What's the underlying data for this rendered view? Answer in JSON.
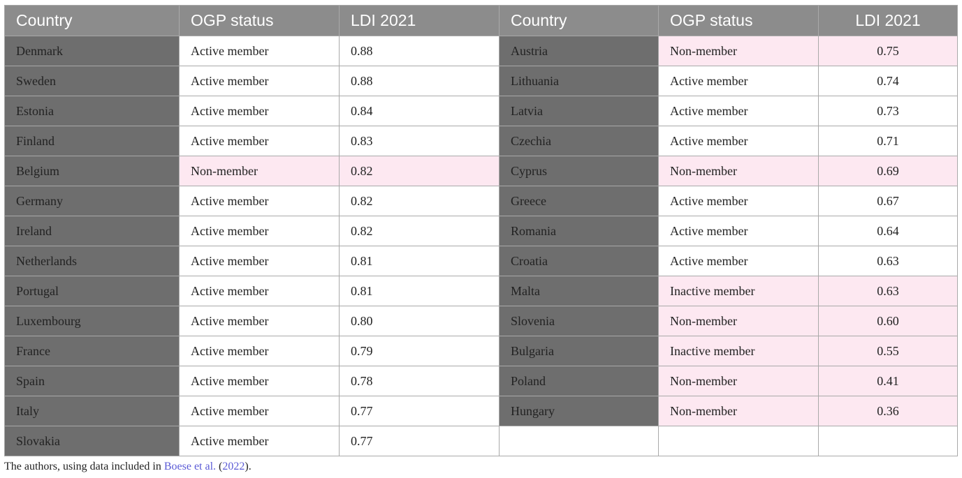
{
  "headers": {
    "country": "Country",
    "ogp_status": "OGP status",
    "ldi": "LDI 2021"
  },
  "rows": [
    {
      "left": {
        "country": "Denmark",
        "status": "Active member",
        "ldi": "0.88",
        "highlight": false
      },
      "right": {
        "country": "Austria",
        "status": "Non-member",
        "ldi": "0.75",
        "highlight": true
      }
    },
    {
      "left": {
        "country": "Sweden",
        "status": "Active member",
        "ldi": "0.88",
        "highlight": false
      },
      "right": {
        "country": "Lithuania",
        "status": "Active member",
        "ldi": "0.74",
        "highlight": false
      }
    },
    {
      "left": {
        "country": "Estonia",
        "status": "Active member",
        "ldi": "0.84",
        "highlight": false
      },
      "right": {
        "country": "Latvia",
        "status": "Active member",
        "ldi": "0.73",
        "highlight": false
      }
    },
    {
      "left": {
        "country": "Finland",
        "status": "Active member",
        "ldi": "0.83",
        "highlight": false
      },
      "right": {
        "country": "Czechia",
        "status": "Active member",
        "ldi": "0.71",
        "highlight": false
      }
    },
    {
      "left": {
        "country": "Belgium",
        "status": "Non-member",
        "ldi": "0.82",
        "highlight": true
      },
      "right": {
        "country": "Cyprus",
        "status": "Non-member",
        "ldi": "0.69",
        "highlight": true
      }
    },
    {
      "left": {
        "country": "Germany",
        "status": "Active member",
        "ldi": "0.82",
        "highlight": false
      },
      "right": {
        "country": "Greece",
        "status": "Active member",
        "ldi": "0.67",
        "highlight": false
      }
    },
    {
      "left": {
        "country": "Ireland",
        "status": "Active member",
        "ldi": "0.82",
        "highlight": false
      },
      "right": {
        "country": "Romania",
        "status": "Active member",
        "ldi": "0.64",
        "highlight": false
      }
    },
    {
      "left": {
        "country": "Netherlands",
        "status": "Active member",
        "ldi": "0.81",
        "highlight": false
      },
      "right": {
        "country": "Croatia",
        "status": "Active member",
        "ldi": "0.63",
        "highlight": false
      }
    },
    {
      "left": {
        "country": "Portugal",
        "status": "Active member",
        "ldi": "0.81",
        "highlight": false
      },
      "right": {
        "country": "Malta",
        "status": "Inactive member",
        "ldi": "0.63",
        "highlight": true
      }
    },
    {
      "left": {
        "country": "Luxembourg",
        "status": "Active member",
        "ldi": "0.80",
        "highlight": false
      },
      "right": {
        "country": "Slovenia",
        "status": "Non-member",
        "ldi": "0.60",
        "highlight": true
      }
    },
    {
      "left": {
        "country": "France",
        "status": "Active member",
        "ldi": "0.79",
        "highlight": false
      },
      "right": {
        "country": "Bulgaria",
        "status": "Inactive member",
        "ldi": "0.55",
        "highlight": true
      }
    },
    {
      "left": {
        "country": "Spain",
        "status": "Active member",
        "ldi": "0.78",
        "highlight": false
      },
      "right": {
        "country": "Poland",
        "status": "Non-member",
        "ldi": "0.41",
        "highlight": true
      }
    },
    {
      "left": {
        "country": "Italy",
        "status": "Active member",
        "ldi": "0.77",
        "highlight": false
      },
      "right": {
        "country": "Hungary",
        "status": "Non-member",
        "ldi": "0.36",
        "highlight": true
      }
    },
    {
      "left": {
        "country": "Slovakia",
        "status": "Active member",
        "ldi": "0.77",
        "highlight": false
      },
      "right": {
        "country": "",
        "status": "",
        "ldi": "",
        "highlight": false
      }
    }
  ],
  "caption": {
    "prefix": "The authors, using data included in ",
    "ref_text": "Boese et al.",
    "middle": " (",
    "year": "2022",
    "suffix": ")."
  },
  "colors": {
    "header_bg": "#8c8c8c",
    "country_cell_bg": "#6e6e6e",
    "highlight_bg": "#fde8f1",
    "link": "#5b5bd6"
  }
}
